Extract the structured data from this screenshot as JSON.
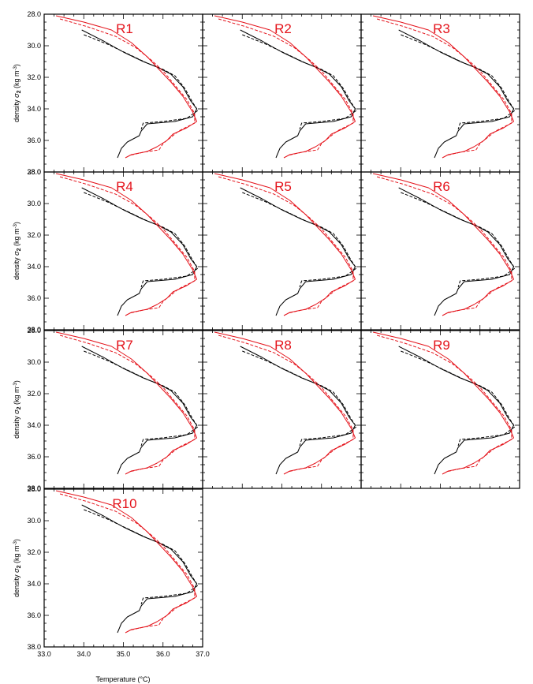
{
  "chart_data": {
    "type": "line",
    "panel_labels": [
      "R1",
      "R2",
      "R3",
      "R4",
      "R5",
      "R6",
      "R7",
      "R8",
      "R9",
      "R10"
    ],
    "xlabel": "Temperature (°C)",
    "ylabel": "density σ2 (kg m-3)",
    "ylabel_parts": {
      "prefix": "density ",
      "symbol": "σ",
      "sub": "2",
      "units_open": " (kg m",
      "sup": "-3",
      "units_close": ")"
    },
    "xlim": [
      33.0,
      37.0
    ],
    "ylim": [
      38.0,
      28.0
    ],
    "x_ticks": [
      "33.0",
      "34.0",
      "35.0",
      "36.0",
      "37.0"
    ],
    "y_ticks": [
      "28.0",
      "30.0",
      "32.0",
      "34.0",
      "36.0",
      "38.0"
    ],
    "grid": false,
    "legend": "none",
    "colors": {
      "black_series": "#000000",
      "red_series": "#e4121a",
      "panel_label": "#e4121a"
    },
    "series": [
      {
        "color": "#000000",
        "style": "solid",
        "points": [
          [
            33.95,
            29.0
          ],
          [
            34.5,
            29.7
          ],
          [
            35.0,
            30.4
          ],
          [
            35.5,
            31.0
          ],
          [
            35.9,
            31.4
          ],
          [
            36.2,
            31.8
          ],
          [
            36.5,
            32.6
          ],
          [
            36.7,
            33.5
          ],
          [
            36.85,
            34.0
          ],
          [
            36.75,
            34.5
          ],
          [
            36.3,
            34.8
          ],
          [
            35.6,
            34.95
          ],
          [
            35.45,
            35.4
          ],
          [
            35.4,
            35.7
          ],
          [
            35.1,
            36.1
          ],
          [
            34.95,
            36.5
          ],
          [
            34.9,
            36.8
          ],
          [
            34.85,
            37.1
          ]
        ]
      },
      {
        "color": "#000000",
        "style": "dashed",
        "points": [
          [
            34.0,
            29.3
          ],
          [
            34.6,
            29.9
          ],
          [
            35.1,
            30.5
          ],
          [
            35.6,
            31.1
          ],
          [
            36.0,
            31.5
          ],
          [
            36.3,
            31.9
          ],
          [
            36.55,
            32.7
          ],
          [
            36.75,
            33.6
          ],
          [
            36.88,
            34.1
          ],
          [
            36.6,
            34.6
          ],
          [
            36.0,
            34.8
          ],
          [
            35.5,
            34.9
          ],
          [
            35.45,
            35.3
          ]
        ]
      },
      {
        "color": "#e4121a",
        "style": "solid",
        "points": [
          [
            33.3,
            28.1
          ],
          [
            34.0,
            28.5
          ],
          [
            34.7,
            29.0
          ],
          [
            35.2,
            29.8
          ],
          [
            35.6,
            30.7
          ],
          [
            35.9,
            31.5
          ],
          [
            36.2,
            32.3
          ],
          [
            36.5,
            33.2
          ],
          [
            36.75,
            34.2
          ],
          [
            36.85,
            34.8
          ],
          [
            36.6,
            35.2
          ],
          [
            36.25,
            35.6
          ],
          [
            36.1,
            36.0
          ],
          [
            35.85,
            36.4
          ],
          [
            35.6,
            36.7
          ],
          [
            35.2,
            36.9
          ],
          [
            35.05,
            37.1
          ]
        ]
      },
      {
        "color": "#e4121a",
        "style": "dashed",
        "points": [
          [
            33.4,
            28.3
          ],
          [
            34.1,
            28.8
          ],
          [
            34.8,
            29.4
          ],
          [
            35.3,
            30.1
          ],
          [
            35.7,
            30.9
          ],
          [
            36.0,
            31.6
          ],
          [
            36.3,
            32.5
          ],
          [
            36.6,
            33.4
          ],
          [
            36.8,
            34.3
          ],
          [
            36.8,
            34.9
          ],
          [
            36.4,
            35.4
          ],
          [
            36.2,
            35.8
          ],
          [
            36.0,
            36.2
          ],
          [
            35.9,
            36.6
          ],
          [
            35.5,
            36.75
          ],
          [
            35.15,
            36.95
          ]
        ]
      }
    ]
  }
}
